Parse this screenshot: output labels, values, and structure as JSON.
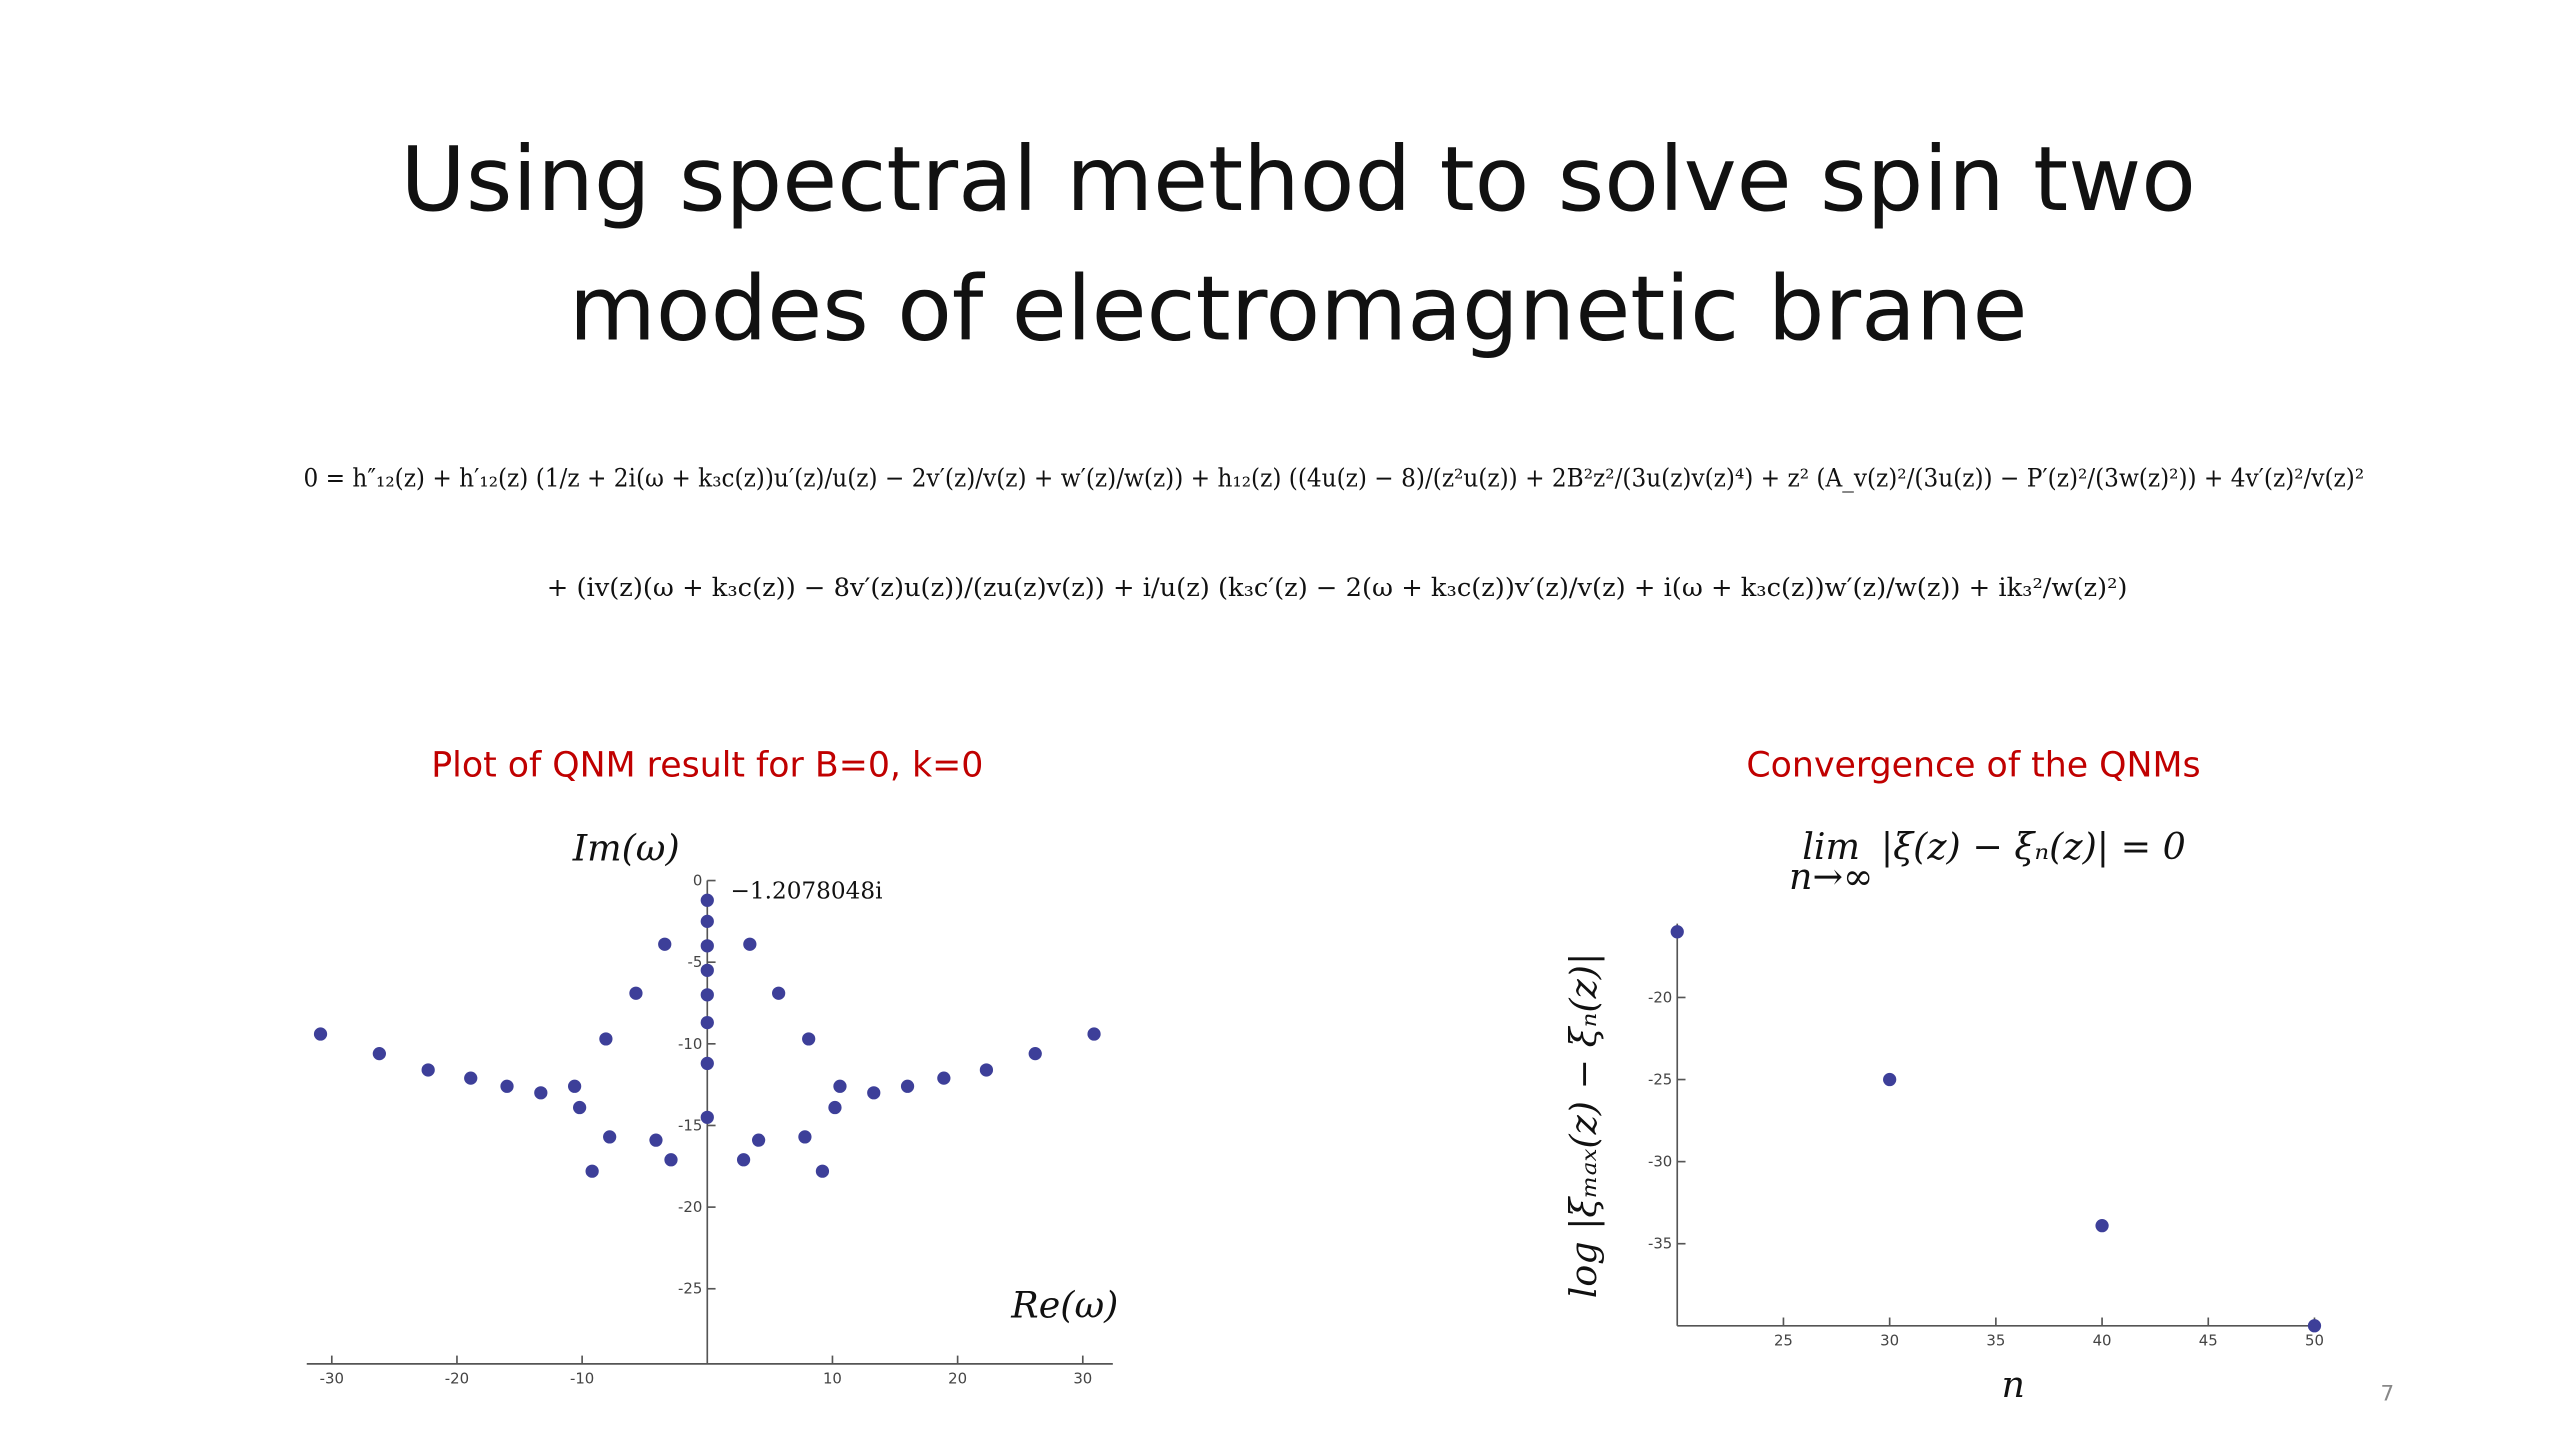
{
  "slide": {
    "title_line1": "Using spectral method to solve spin two",
    "title_line2": "modes of electromagnetic brane",
    "equation_line1": "0 = h″₁₂(z) + h′₁₂(z) (1/z + 2i(ω + k₃c(z))u′(z)/u(z) − 2v′(z)/v(z) + w′(z)/w(z)) + h₁₂(z) ((4u(z) − 8)/(z²u(z)) + 2B²z²/(3u(z)v(z)⁴) + z² (A_v(z)²/(3u(z)) − P′(z)²/(3w(z)²)) + 4v′(z)²/v(z)²",
    "equation_line2": "+ (iv(z)(ω + k₃c(z)) − 8v′(z)u(z))/(zu(z)v(z)) + i/u(z) (k₃c′(z) − 2(ω + k₃c(z))v′(z)/v(z) + i(ω + k₃c(z))w′(z)/w(z)) + ik₃²/w(z)²)",
    "page_number": "7"
  },
  "chart_data": [
    {
      "type": "scatter",
      "title": "Plot of QNM result for B=0, k=0",
      "x_label": "Re(ω)",
      "y_label": "Im(ω)",
      "annotation": "−1.2078048i",
      "color": "#3d3f99",
      "x": [
        -30.9,
        -26.2,
        -22.3,
        -18.9,
        -16.0,
        -13.3,
        -10.6,
        -10.2,
        -8.1,
        -7.8,
        -9.2,
        -5.7,
        -4.1,
        -3.4,
        -2.9,
        0,
        0,
        0,
        0,
        0,
        0,
        0,
        0,
        3.4,
        5.7,
        8.1,
        2.9,
        4.1,
        7.8,
        9.2,
        10.2,
        10.6,
        13.3,
        16.0,
        18.9,
        22.3,
        26.2,
        30.9
      ],
      "values": [
        -9.4,
        -10.6,
        -11.6,
        -12.1,
        -12.6,
        -13.0,
        -12.6,
        -13.9,
        -9.7,
        -15.7,
        -17.8,
        -6.9,
        -15.9,
        -3.9,
        -17.1,
        -1.2078048,
        -2.5,
        -4.0,
        -5.5,
        -7.0,
        -8.7,
        -11.2,
        -14.5,
        -3.9,
        -6.9,
        -9.7,
        -17.1,
        -15.9,
        -15.7,
        -17.8,
        -13.9,
        -12.6,
        -13.0,
        -12.6,
        -12.1,
        -11.6,
        -10.6,
        -9.4
      ],
      "xlim": [
        -32,
        32.4
      ],
      "ylim": [
        -29.6,
        0
      ],
      "xticks": [
        -30,
        -20,
        -10,
        10,
        20,
        30
      ],
      "yticks": [
        0,
        -5,
        -10,
        -15,
        -20,
        -25
      ]
    },
    {
      "type": "scatter",
      "title": "Convergence of the QNMs",
      "formula_lim": "lim",
      "formula_sub": "n→∞",
      "formula_body": "|ξ(z) − ξₙ(z)| = 0",
      "x_label": "n",
      "y_label": "log |ξₘₐₓ(z) − ξₙ(z)|",
      "color": "#3d3f99",
      "x": [
        20,
        30,
        40,
        50
      ],
      "values": [
        -16.0,
        -25.0,
        -33.9,
        -40
      ],
      "xlim": [
        20,
        50
      ],
      "ylim": [
        -40,
        -15.5
      ],
      "xticks": [
        25,
        30,
        35,
        40,
        45,
        50
      ],
      "yticks": [
        -20,
        -25,
        -30,
        -35
      ]
    }
  ]
}
